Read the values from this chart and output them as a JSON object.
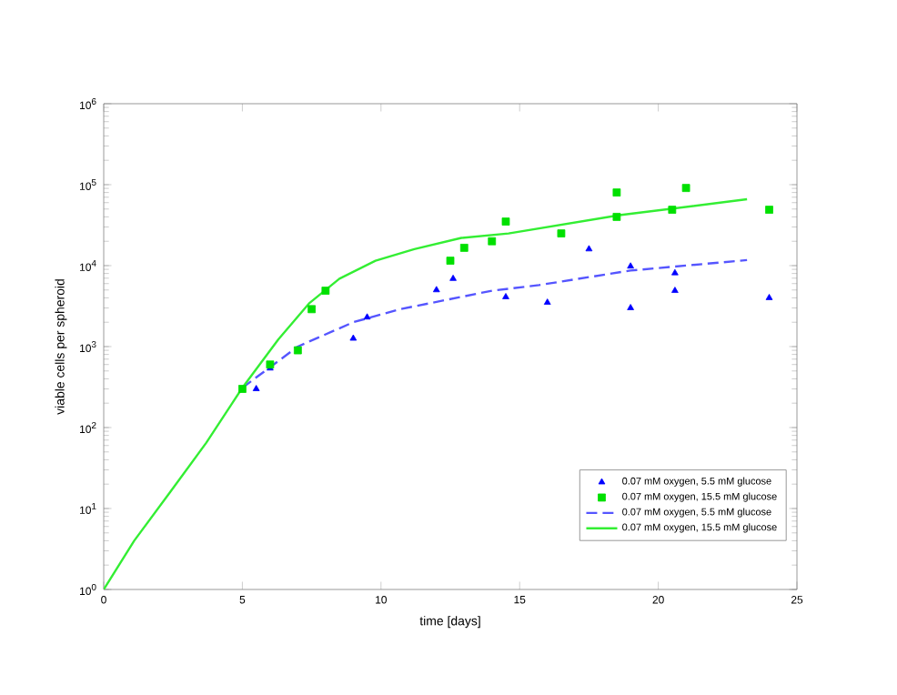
{
  "chart_data": {
    "type": "scatter",
    "xlabel": "time [days]",
    "ylabel": "viable cells per spheroid",
    "log": "y",
    "xlim": [
      0,
      25
    ],
    "ylim": [
      1,
      1000000
    ],
    "xticks": [
      0,
      5,
      10,
      15,
      20,
      25
    ],
    "yticks": [
      {
        "value": 1,
        "label": "10$^{0}$"
      },
      {
        "value": 10,
        "label": "10$^{1}$"
      },
      {
        "value": 100,
        "label": "10$^{2}$"
      },
      {
        "value": 1000,
        "label": "10$^{3}$"
      },
      {
        "value": 10000,
        "label": "10$^{4}$"
      },
      {
        "value": 100000,
        "label": "10$^{5}$"
      },
      {
        "value": 1000000,
        "label": "10$^{6}$"
      }
    ],
    "legend": "bottom right",
    "grid": false,
    "series": [
      {
        "name": "0.07 mM oxygen, 5.5 mM glucose",
        "marker": "triangle",
        "color": "#0000ff",
        "x": [
          5.5,
          6,
          7,
          9,
          9.5,
          12,
          12.6,
          14.5,
          16,
          17.5,
          19,
          19,
          20.6,
          20.6,
          24
        ],
        "values": [
          300,
          540,
          null,
          1260,
          2300,
          5000,
          6900,
          4100,
          3500,
          16000,
          9800,
          3000,
          8100,
          4900,
          4000
        ]
      },
      {
        "name": "0.07 mM oxygen, 15.5 mM glucose",
        "marker": "square",
        "color": "#00e000",
        "x": [
          5,
          6,
          7,
          7.5,
          8,
          12.5,
          13,
          14,
          14.5,
          16.5,
          18.5,
          18.5,
          20.5,
          21,
          24
        ],
        "values": [
          300,
          600,
          900,
          2900,
          4900,
          11500,
          16600,
          20000,
          35000,
          25000,
          40000,
          80000,
          49000,
          91000,
          49000
        ]
      },
      {
        "name": "0.07 mM oxygen, 5.5 mM glucose",
        "type": "line",
        "line_style": "dashed",
        "marker": "none",
        "color": "#5555ff",
        "x": [
          5,
          7,
          9,
          10.7,
          14,
          15.7,
          19,
          23.2
        ],
        "values": [
          310,
          1000,
          2000,
          2900,
          4900,
          5750,
          8700,
          11700
        ]
      },
      {
        "name": "0.07 mM oxygen, 15.5 mM glucose",
        "type": "line",
        "line_style": "solid",
        "marker": "none",
        "color": "#33ee33",
        "x": [
          0,
          1.1,
          2.4,
          3.7,
          5,
          6.3,
          7.4,
          8.5,
          9.8,
          11.2,
          12.9,
          14.6,
          18.6,
          23.2
        ],
        "values": [
          1,
          4,
          16,
          65,
          310,
          1230,
          3400,
          6900,
          11500,
          16000,
          22000,
          25000,
          42000,
          66000
        ]
      }
    ]
  }
}
